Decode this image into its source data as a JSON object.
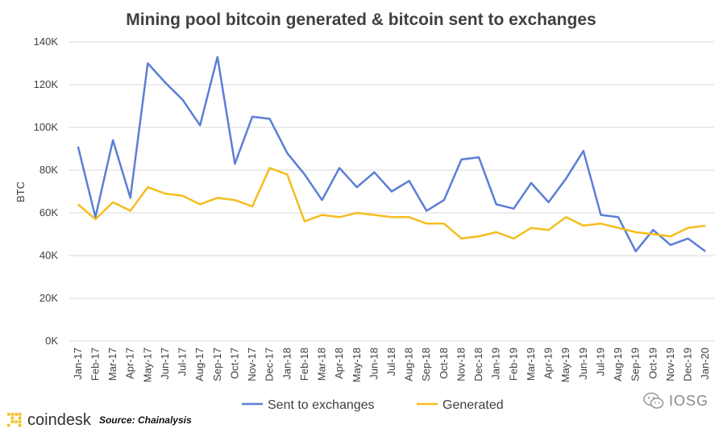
{
  "chart_data": {
    "type": "line",
    "title": "Mining pool bitcoin generated & bitcoin sent to exchanges",
    "ylabel": "BTC",
    "xlabel": "",
    "ylim": [
      0,
      140000
    ],
    "yticks": [
      0,
      20000,
      40000,
      60000,
      80000,
      100000,
      120000,
      140000
    ],
    "ytick_labels": [
      "0K",
      "20K",
      "40K",
      "60K",
      "80K",
      "100K",
      "120K",
      "140K"
    ],
    "grid": "horizontal",
    "legend_position": "bottom",
    "categories": [
      "Jan-17",
      "Feb-17",
      "Mar-17",
      "Apr-17",
      "May-17",
      "Jun-17",
      "Jul-17",
      "Aug-17",
      "Sep-17",
      "Oct-17",
      "Nov-17",
      "Dec-17",
      "Jan-18",
      "Feb-18",
      "Mar-18",
      "Apr-18",
      "May-18",
      "Jun-18",
      "Jul-18",
      "Aug-18",
      "Sep-18",
      "Oct-18",
      "Nov-18",
      "Dec-18",
      "Jan-19",
      "Feb-19",
      "Mar-19",
      "Apr-19",
      "May-19",
      "Jun-19",
      "Jul-19",
      "Aug-19",
      "Sep-19",
      "Oct-19",
      "Nov-19",
      "Dec-19",
      "Jan-20"
    ],
    "series": [
      {
        "name": "Sent to exchanges",
        "color": "#5b7ed6",
        "values": [
          91000,
          58000,
          94000,
          67000,
          130000,
          121000,
          113000,
          101000,
          133000,
          83000,
          105000,
          104000,
          88000,
          78000,
          66000,
          81000,
          72000,
          79000,
          70000,
          75000,
          61000,
          66000,
          85000,
          86000,
          64000,
          62000,
          74000,
          65000,
          76000,
          89000,
          59000,
          58000,
          42000,
          52000,
          45000,
          48000,
          42000
        ]
      },
      {
        "name": "Generated",
        "color": "#f5bd1f",
        "values": [
          64000,
          57000,
          65000,
          61000,
          72000,
          69000,
          68000,
          64000,
          67000,
          66000,
          63000,
          81000,
          78000,
          56000,
          59000,
          58000,
          60000,
          59000,
          58000,
          58000,
          55000,
          55000,
          48000,
          49000,
          51000,
          48000,
          53000,
          52000,
          58000,
          54000,
          55000,
          53000,
          51000,
          50000,
          49000,
          53000,
          54000
        ]
      }
    ]
  },
  "branding": {
    "site_name": "coindesk",
    "source": "Source: Chainalysis",
    "watermark": "IOSG",
    "logo_color": "#f5bd1f"
  }
}
